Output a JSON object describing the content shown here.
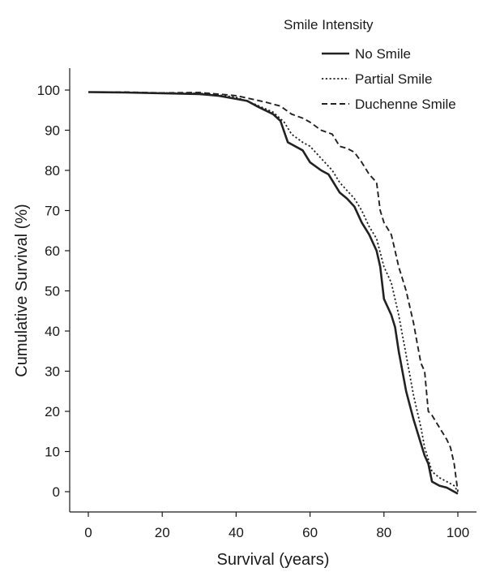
{
  "chart_data": {
    "type": "line",
    "xlabel": "Survival (years)",
    "ylabel": "Cumulative Survival (%)",
    "xlim": [
      -5,
      105
    ],
    "ylim": [
      -5,
      106
    ],
    "xticks": [
      0,
      20,
      40,
      60,
      80,
      100
    ],
    "yticks": [
      0,
      10,
      20,
      30,
      40,
      50,
      60,
      70,
      80,
      90,
      100
    ],
    "grid": false,
    "legend": {
      "title": "Smile Intensity",
      "position": "top-right"
    },
    "series": [
      {
        "name": "No Smile",
        "style": "solid",
        "points": [
          [
            0,
            99.5
          ],
          [
            10,
            99.4
          ],
          [
            20,
            99.2
          ],
          [
            30,
            99.0
          ],
          [
            35,
            98.6
          ],
          [
            40,
            97.8
          ],
          [
            43,
            97.3
          ],
          [
            46,
            95.8
          ],
          [
            50,
            94.0
          ],
          [
            52,
            92.3
          ],
          [
            54,
            87.0
          ],
          [
            58,
            85.0
          ],
          [
            60,
            82.0
          ],
          [
            63,
            80.0
          ],
          [
            65,
            79.0
          ],
          [
            68,
            74.5
          ],
          [
            70,
            73.0
          ],
          [
            72,
            71.0
          ],
          [
            74,
            67.0
          ],
          [
            76,
            64.0
          ],
          [
            78,
            60.0
          ],
          [
            79,
            56.0
          ],
          [
            80,
            48.0
          ],
          [
            82,
            44.0
          ],
          [
            83,
            41.0
          ],
          [
            84,
            35.0
          ],
          [
            85,
            30.0
          ],
          [
            86,
            25.0
          ],
          [
            88,
            18.0
          ],
          [
            90,
            12.0
          ],
          [
            91,
            9.0
          ],
          [
            92,
            7.0
          ],
          [
            93,
            2.5
          ],
          [
            95,
            1.5
          ],
          [
            97,
            1.0
          ],
          [
            99,
            0.0
          ],
          [
            100,
            -0.5
          ]
        ]
      },
      {
        "name": "Partial Smile",
        "style": "dotted",
        "points": [
          [
            0,
            99.5
          ],
          [
            10,
            99.4
          ],
          [
            20,
            99.3
          ],
          [
            30,
            99.2
          ],
          [
            35,
            98.8
          ],
          [
            40,
            98.2
          ],
          [
            45,
            96.5
          ],
          [
            50,
            94.5
          ],
          [
            53,
            92.0
          ],
          [
            55,
            89.0
          ],
          [
            58,
            87.0
          ],
          [
            60,
            86.0
          ],
          [
            63,
            83.0
          ],
          [
            66,
            80.0
          ],
          [
            68,
            77.0
          ],
          [
            70,
            75.0
          ],
          [
            72,
            73.0
          ],
          [
            74,
            70.0
          ],
          [
            76,
            66.0
          ],
          [
            78,
            63.0
          ],
          [
            80,
            56.0
          ],
          [
            82,
            52.0
          ],
          [
            84,
            44.0
          ],
          [
            86,
            34.0
          ],
          [
            88,
            24.0
          ],
          [
            90,
            16.0
          ],
          [
            91,
            11.0
          ],
          [
            93,
            5.0
          ],
          [
            95,
            3.5
          ],
          [
            97,
            2.5
          ],
          [
            99,
            1.5
          ],
          [
            100,
            0.0
          ]
        ]
      },
      {
        "name": "Duchenne Smile",
        "style": "dashed",
        "points": [
          [
            0,
            99.5
          ],
          [
            10,
            99.5
          ],
          [
            20,
            99.3
          ],
          [
            30,
            99.4
          ],
          [
            35,
            99.0
          ],
          [
            40,
            98.6
          ],
          [
            45,
            97.6
          ],
          [
            48,
            97.0
          ],
          [
            52,
            96.0
          ],
          [
            55,
            94.0
          ],
          [
            58,
            93.0
          ],
          [
            60,
            92.0
          ],
          [
            63,
            90.0
          ],
          [
            66,
            89.0
          ],
          [
            68,
            86.0
          ],
          [
            70,
            85.5
          ],
          [
            72,
            84.5
          ],
          [
            74,
            82.0
          ],
          [
            76,
            79.0
          ],
          [
            78,
            77.0
          ],
          [
            79,
            70.0
          ],
          [
            80,
            67.0
          ],
          [
            82,
            64.0
          ],
          [
            83,
            60.0
          ],
          [
            84,
            56.0
          ],
          [
            85,
            53.0
          ],
          [
            86,
            50.0
          ],
          [
            88,
            42.0
          ],
          [
            89,
            37.0
          ],
          [
            90,
            32.0
          ],
          [
            91,
            30.0
          ],
          [
            92,
            20.0
          ],
          [
            93,
            19.0
          ],
          [
            95,
            16.0
          ],
          [
            97,
            13.0
          ],
          [
            98,
            11.0
          ],
          [
            99,
            7.0
          ],
          [
            100,
            0.0
          ]
        ]
      }
    ]
  }
}
